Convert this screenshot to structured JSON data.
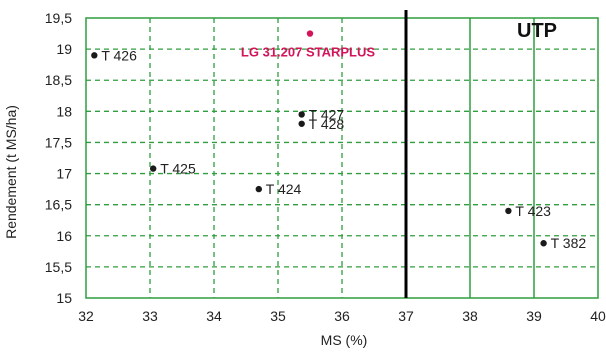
{
  "chart_data": {
    "type": "scatter",
    "title": "",
    "xlabel": "MS (%)",
    "ylabel": "Rendement (t MS/ha)",
    "xlim": [
      32,
      40
    ],
    "ylim": [
      15,
      19.5
    ],
    "x_ticks": [
      "32",
      "33",
      "34",
      "35",
      "36",
      "37",
      "38",
      "39",
      "40"
    ],
    "y_ticks": [
      "15",
      "15,5",
      "16",
      "16,5",
      "17",
      "17,5",
      "18",
      "18,5",
      "19",
      "19,5"
    ],
    "grid": true,
    "points": [
      {
        "label": "T 426",
        "x": 32.13,
        "y": 18.9,
        "color": "#1a1a1a"
      },
      {
        "label": "LG 31.207 STARPLUS",
        "x": 35.5,
        "y": 19.25,
        "color": "#d4145a"
      },
      {
        "label": "T 427",
        "x": 35.37,
        "y": 17.95,
        "color": "#1a1a1a"
      },
      {
        "label": "T 428",
        "x": 35.37,
        "y": 17.8,
        "color": "#1a1a1a"
      },
      {
        "label": "T 425",
        "x": 33.05,
        "y": 17.08,
        "color": "#1a1a1a"
      },
      {
        "label": "T 424",
        "x": 34.7,
        "y": 16.75,
        "color": "#1a1a1a"
      },
      {
        "label": "T 423",
        "x": 38.6,
        "y": 16.4,
        "color": "#1a1a1a"
      },
      {
        "label": "T 382",
        "x": 39.15,
        "y": 15.88,
        "color": "#1a1a1a"
      }
    ],
    "reference_line_x": 37,
    "zone_label": "UTP",
    "colors": {
      "grid": "#2e9e3e",
      "frame": "#2e9e3e",
      "reference_line": "#000000",
      "highlight": "#d4145a",
      "text": "#222222"
    }
  }
}
